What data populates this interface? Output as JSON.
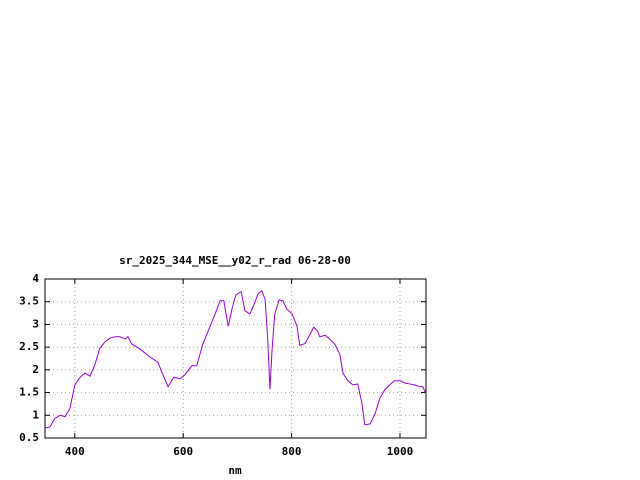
{
  "chart_data": {
    "type": "line",
    "title": "sr_2025_344_MSE__y02_r_rad 06-28-00",
    "x_label": "nm",
    "x": [
      345,
      354,
      363,
      373,
      382,
      391,
      400,
      410,
      419,
      428,
      437,
      446,
      456,
      465,
      474,
      483,
      493,
      498,
      505,
      520,
      539,
      553,
      561,
      572,
      583,
      594,
      603,
      616,
      625,
      636,
      649,
      659,
      668,
      675,
      683,
      690,
      697,
      707,
      714,
      723,
      731,
      738,
      745,
      751,
      756,
      760,
      764,
      769,
      777,
      784,
      791,
      801,
      810,
      815,
      825,
      834,
      841,
      848,
      852,
      862,
      871,
      880,
      889,
      895,
      904,
      913,
      922,
      930,
      935,
      945,
      954,
      963,
      972,
      981,
      990,
      1000,
      1009,
      1018,
      1027,
      1037,
      1042,
      1048
    ],
    "series": [
      {
        "name": "sr_2025_344_MSE__y02_r_rad 06-28-00",
        "color": "#9400d3",
        "values": [
          0.72,
          0.74,
          0.93,
          1.0,
          0.97,
          1.15,
          1.67,
          1.84,
          1.93,
          1.86,
          2.11,
          2.47,
          2.62,
          2.7,
          2.73,
          2.73,
          2.68,
          2.73,
          2.57,
          2.46,
          2.28,
          2.17,
          1.94,
          1.63,
          1.84,
          1.8,
          1.89,
          2.09,
          2.09,
          2.56,
          2.94,
          3.23,
          3.52,
          3.52,
          2.96,
          3.34,
          3.65,
          3.72,
          3.3,
          3.23,
          3.45,
          3.67,
          3.74,
          3.56,
          2.68,
          1.57,
          2.45,
          3.23,
          3.54,
          3.52,
          3.34,
          3.23,
          2.96,
          2.54,
          2.58,
          2.78,
          2.94,
          2.85,
          2.73,
          2.76,
          2.67,
          2.56,
          2.34,
          1.92,
          1.76,
          1.67,
          1.69,
          1.25,
          0.79,
          0.81,
          1.03,
          1.38,
          1.56,
          1.67,
          1.76,
          1.76,
          1.71,
          1.69,
          1.67,
          1.63,
          1.63,
          1.47
        ]
      }
    ],
    "xlim": [
      345,
      1048
    ],
    "xticks": [
      400,
      600,
      800,
      1000
    ],
    "ylim": [
      0.5,
      4
    ],
    "yticks": [
      0.5,
      1,
      {
        "value": 1.5,
        "label": "1.5"
      },
      2,
      {
        "value": 2.5,
        "label": "2.5"
      },
      3,
      {
        "value": 3.5,
        "label": "3.5"
      },
      4
    ],
    "grid": true
  }
}
